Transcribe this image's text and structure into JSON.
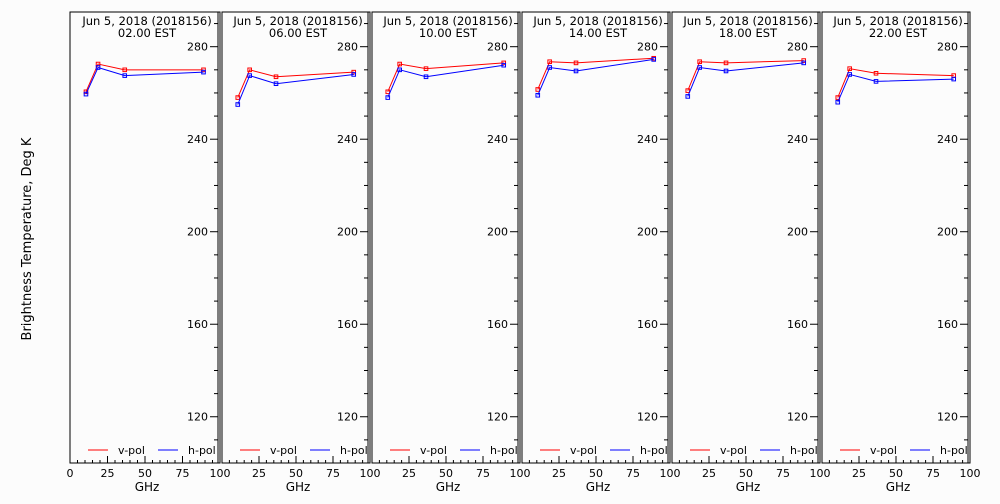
{
  "figure": {
    "ylabel": "Brightness Temperature, Deg K",
    "xlabel": "GHz"
  },
  "chart_data": [
    {
      "type": "line",
      "title": "Jun  5, 2018 (2018156)",
      "subtitle": "02.00 EST",
      "xlabel": "GHz",
      "ylabel": "Brightness Temperature, Deg K",
      "xlim": [
        0,
        100
      ],
      "ylim": [
        100,
        295
      ],
      "xticks": [
        "0",
        "25",
        "50",
        "75",
        "100"
      ],
      "yticks": [
        "120",
        "160",
        "200",
        "240",
        "280"
      ],
      "legend": "bottom",
      "x": [
        10.65,
        18.7,
        36.5,
        89
      ],
      "series": [
        {
          "name": "v-pol",
          "color": "#ff0000",
          "values": [
            260.5,
            272.5,
            270,
            270
          ]
        },
        {
          "name": "h-pol",
          "color": "#0000ff",
          "values": [
            259.5,
            271,
            267.5,
            269
          ]
        }
      ]
    },
    {
      "type": "line",
      "title": "Jun  5, 2018 (2018156)",
      "subtitle": "06.00 EST",
      "xlabel": "GHz",
      "xlim": [
        0,
        100
      ],
      "ylim": [
        100,
        295
      ],
      "xticks": [
        "0",
        "25",
        "50",
        "75",
        "100"
      ],
      "yticks": [
        "120",
        "160",
        "200",
        "240",
        "280"
      ],
      "legend": "bottom",
      "x": [
        10.65,
        18.7,
        36.5,
        89
      ],
      "series": [
        {
          "name": "v-pol",
          "color": "#ff0000",
          "values": [
            258,
            270,
            267,
            269
          ]
        },
        {
          "name": "h-pol",
          "color": "#0000ff",
          "values": [
            255,
            267.5,
            264,
            268
          ]
        }
      ]
    },
    {
      "type": "line",
      "title": "Jun  5, 2018 (2018156)",
      "subtitle": "10.00 EST",
      "xlabel": "GHz",
      "xlim": [
        0,
        100
      ],
      "ylim": [
        100,
        295
      ],
      "xticks": [
        "0",
        "25",
        "50",
        "75",
        "100"
      ],
      "yticks": [
        "120",
        "160",
        "200",
        "240",
        "280"
      ],
      "legend": "bottom",
      "x": [
        10.65,
        18.7,
        36.5,
        89
      ],
      "series": [
        {
          "name": "v-pol",
          "color": "#ff0000",
          "values": [
            260.5,
            272.5,
            270.5,
            273
          ]
        },
        {
          "name": "h-pol",
          "color": "#0000ff",
          "values": [
            258,
            270,
            267,
            272
          ]
        }
      ]
    },
    {
      "type": "line",
      "title": "Jun  5, 2018 (2018156)",
      "subtitle": "14.00 EST",
      "xlabel": "GHz",
      "xlim": [
        0,
        100
      ],
      "ylim": [
        100,
        295
      ],
      "xticks": [
        "0",
        "25",
        "50",
        "75",
        "100"
      ],
      "yticks": [
        "120",
        "160",
        "200",
        "240",
        "280"
      ],
      "legend": "bottom",
      "x": [
        10.65,
        18.7,
        36.5,
        89
      ],
      "series": [
        {
          "name": "v-pol",
          "color": "#ff0000",
          "values": [
            261.5,
            273.5,
            273,
            275
          ]
        },
        {
          "name": "h-pol",
          "color": "#0000ff",
          "values": [
            259,
            271,
            269.5,
            274.5
          ]
        }
      ]
    },
    {
      "type": "line",
      "title": "Jun  5, 2018 (2018156)",
      "subtitle": "18.00 EST",
      "xlabel": "GHz",
      "xlim": [
        0,
        100
      ],
      "ylim": [
        100,
        295
      ],
      "xticks": [
        "0",
        "25",
        "50",
        "75",
        "100"
      ],
      "yticks": [
        "120",
        "160",
        "200",
        "240",
        "280"
      ],
      "legend": "bottom",
      "x": [
        10.65,
        18.7,
        36.5,
        89
      ],
      "series": [
        {
          "name": "v-pol",
          "color": "#ff0000",
          "values": [
            261,
            273.5,
            273,
            274
          ]
        },
        {
          "name": "h-pol",
          "color": "#0000ff",
          "values": [
            258.5,
            271,
            269.5,
            273
          ]
        }
      ]
    },
    {
      "type": "line",
      "title": "Jun  5, 2018 (2018156)",
      "subtitle": "22.00 EST",
      "xlabel": "GHz",
      "xlim": [
        0,
        100
      ],
      "ylim": [
        100,
        295
      ],
      "xticks": [
        "0",
        "25",
        "50",
        "75",
        "100"
      ],
      "yticks": [
        "120",
        "160",
        "200",
        "240",
        "280"
      ],
      "legend": "bottom",
      "x": [
        10.65,
        18.7,
        36.5,
        89
      ],
      "series": [
        {
          "name": "v-pol",
          "color": "#ff0000",
          "values": [
            258,
            270.5,
            268.5,
            267.5
          ]
        },
        {
          "name": "h-pol",
          "color": "#0000ff",
          "values": [
            256,
            268,
            265,
            266
          ]
        }
      ]
    }
  ]
}
